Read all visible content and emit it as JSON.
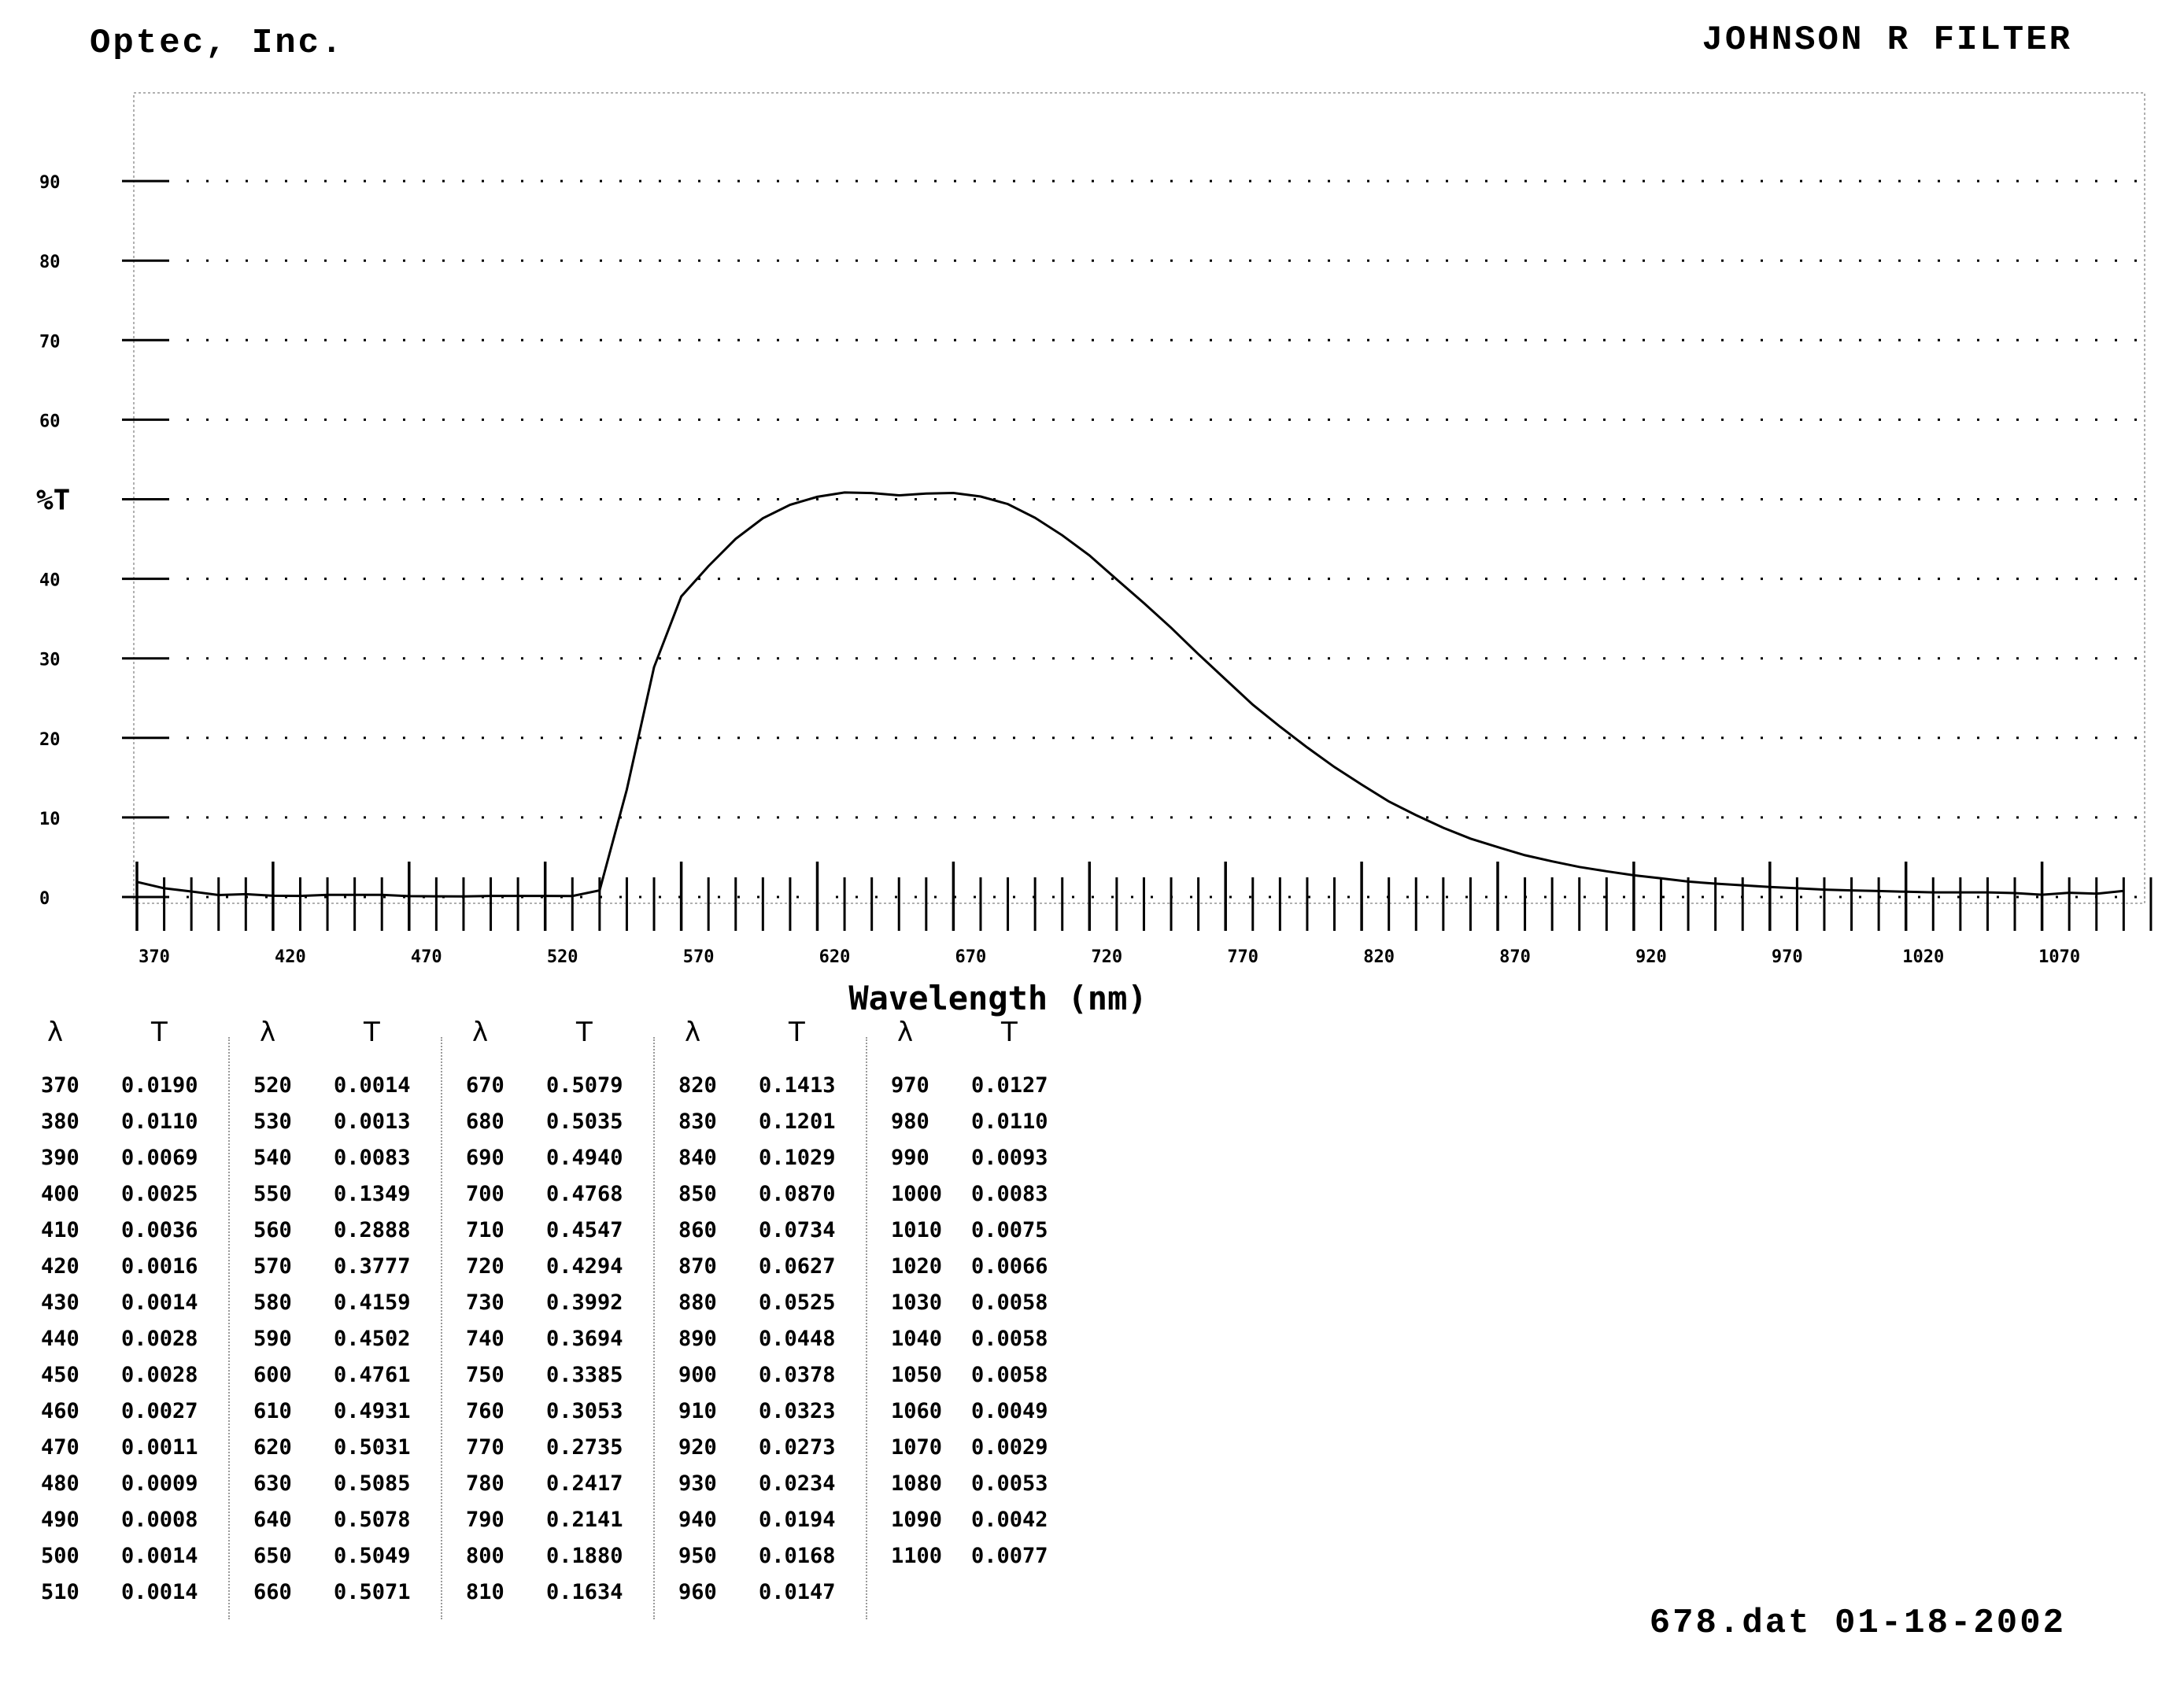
{
  "header": {
    "company": "Optec, Inc.",
    "filter_name": "JOHNSON R FILTER"
  },
  "footer": {
    "file_info": "678.dat 01-18-2002"
  },
  "table": {
    "wavelength_header": "λ",
    "transmission_header": "T"
  },
  "chart_data": {
    "type": "line",
    "title": "JOHNSON R FILTER",
    "xlabel": "Wavelength (nm)",
    "ylabel": "%T",
    "xlim": [
      370,
      1110
    ],
    "ylim": [
      0,
      100
    ],
    "x_ticks": [
      370,
      420,
      470,
      520,
      570,
      620,
      670,
      720,
      770,
      820,
      870,
      920,
      970,
      1020,
      1070
    ],
    "y_ticks": [
      0,
      10,
      20,
      30,
      40,
      50,
      60,
      70,
      80,
      90
    ],
    "y_tick_labels": [
      "0",
      "10",
      "20",
      "30",
      "40",
      "%T",
      "60",
      "70",
      "80",
      "90"
    ],
    "grid": "dotted-horizontal",
    "line_color": "#000000",
    "series": [
      {
        "x": [
          370,
          380,
          390,
          400,
          410,
          420,
          430,
          440,
          450,
          460,
          470,
          480,
          490,
          500,
          510,
          520,
          530,
          540,
          550,
          560,
          570,
          580,
          590,
          600,
          610,
          620,
          630,
          640,
          650,
          660,
          670,
          680,
          690,
          700,
          710,
          720,
          730,
          740,
          750,
          760,
          770,
          780,
          790,
          800,
          810,
          820,
          830,
          840,
          850,
          860,
          870,
          880,
          890,
          900,
          910,
          920,
          930,
          940,
          950,
          960,
          970,
          980,
          990,
          1000,
          1010,
          1020,
          1030,
          1040,
          1050,
          1060,
          1070,
          1080,
          1090,
          1100
        ],
        "values": [
          0.019,
          0.011,
          0.0069,
          0.0025,
          0.0036,
          0.0016,
          0.0014,
          0.0028,
          0.0028,
          0.0027,
          0.0011,
          0.0009,
          0.0008,
          0.0014,
          0.0014,
          0.0014,
          0.0013,
          0.0083,
          0.1349,
          0.2888,
          0.3777,
          0.4159,
          0.4502,
          0.4761,
          0.4931,
          0.5031,
          0.5085,
          0.5078,
          0.5049,
          0.5071,
          0.5079,
          0.5035,
          0.494,
          0.4768,
          0.4547,
          0.4294,
          0.3992,
          0.3694,
          0.3385,
          0.3053,
          0.2735,
          0.2417,
          0.2141,
          0.188,
          0.1634,
          0.1413,
          0.1201,
          0.1029,
          0.087,
          0.0734,
          0.0627,
          0.0525,
          0.0448,
          0.0378,
          0.0323,
          0.0273,
          0.0234,
          0.0194,
          0.0168,
          0.0147,
          0.0127,
          0.011,
          0.0093,
          0.0083,
          0.0075,
          0.0066,
          0.0058,
          0.0058,
          0.0058,
          0.0049,
          0.0029,
          0.0053,
          0.0042,
          0.0077
        ]
      }
    ],
    "table_rows": [
      [
        [
          "370",
          "0.0190"
        ],
        [
          "380",
          "0.0110"
        ],
        [
          "390",
          "0.0069"
        ],
        [
          "400",
          "0.0025"
        ],
        [
          "410",
          "0.0036"
        ],
        [
          "420",
          "0.0016"
        ],
        [
          "430",
          "0.0014"
        ],
        [
          "440",
          "0.0028"
        ],
        [
          "450",
          "0.0028"
        ],
        [
          "460",
          "0.0027"
        ],
        [
          "470",
          "0.0011"
        ],
        [
          "480",
          "0.0009"
        ],
        [
          "490",
          "0.0008"
        ],
        [
          "500",
          "0.0014"
        ],
        [
          "510",
          "0.0014"
        ]
      ],
      [
        [
          "520",
          "0.0014"
        ],
        [
          "530",
          "0.0013"
        ],
        [
          "540",
          "0.0083"
        ],
        [
          "550",
          "0.1349"
        ],
        [
          "560",
          "0.2888"
        ],
        [
          "570",
          "0.3777"
        ],
        [
          "580",
          "0.4159"
        ],
        [
          "590",
          "0.4502"
        ],
        [
          "600",
          "0.4761"
        ],
        [
          "610",
          "0.4931"
        ],
        [
          "620",
          "0.5031"
        ],
        [
          "630",
          "0.5085"
        ],
        [
          "640",
          "0.5078"
        ],
        [
          "650",
          "0.5049"
        ],
        [
          "660",
          "0.5071"
        ]
      ],
      [
        [
          "670",
          "0.5079"
        ],
        [
          "680",
          "0.5035"
        ],
        [
          "690",
          "0.4940"
        ],
        [
          "700",
          "0.4768"
        ],
        [
          "710",
          "0.4547"
        ],
        [
          "720",
          "0.4294"
        ],
        [
          "730",
          "0.3992"
        ],
        [
          "740",
          "0.3694"
        ],
        [
          "750",
          "0.3385"
        ],
        [
          "760",
          "0.3053"
        ],
        [
          "770",
          "0.2735"
        ],
        [
          "780",
          "0.2417"
        ],
        [
          "790",
          "0.2141"
        ],
        [
          "800",
          "0.1880"
        ],
        [
          "810",
          "0.1634"
        ]
      ],
      [
        [
          "820",
          "0.1413"
        ],
        [
          "830",
          "0.1201"
        ],
        [
          "840",
          "0.1029"
        ],
        [
          "850",
          "0.0870"
        ],
        [
          "860",
          "0.0734"
        ],
        [
          "870",
          "0.0627"
        ],
        [
          "880",
          "0.0525"
        ],
        [
          "890",
          "0.0448"
        ],
        [
          "900",
          "0.0378"
        ],
        [
          "910",
          "0.0323"
        ],
        [
          "920",
          "0.0273"
        ],
        [
          "930",
          "0.0234"
        ],
        [
          "940",
          "0.0194"
        ],
        [
          "950",
          "0.0168"
        ],
        [
          "960",
          "0.0147"
        ]
      ],
      [
        [
          "970",
          "0.0127"
        ],
        [
          "980",
          "0.0110"
        ],
        [
          "990",
          "0.0093"
        ],
        [
          "1000",
          "0.0083"
        ],
        [
          "1010",
          "0.0075"
        ],
        [
          "1020",
          "0.0066"
        ],
        [
          "1030",
          "0.0058"
        ],
        [
          "1040",
          "0.0058"
        ],
        [
          "1050",
          "0.0058"
        ],
        [
          "1060",
          "0.0049"
        ],
        [
          "1070",
          "0.0029"
        ],
        [
          "1080",
          "0.0053"
        ],
        [
          "1090",
          "0.0042"
        ],
        [
          "1100",
          "0.0077"
        ]
      ]
    ]
  }
}
